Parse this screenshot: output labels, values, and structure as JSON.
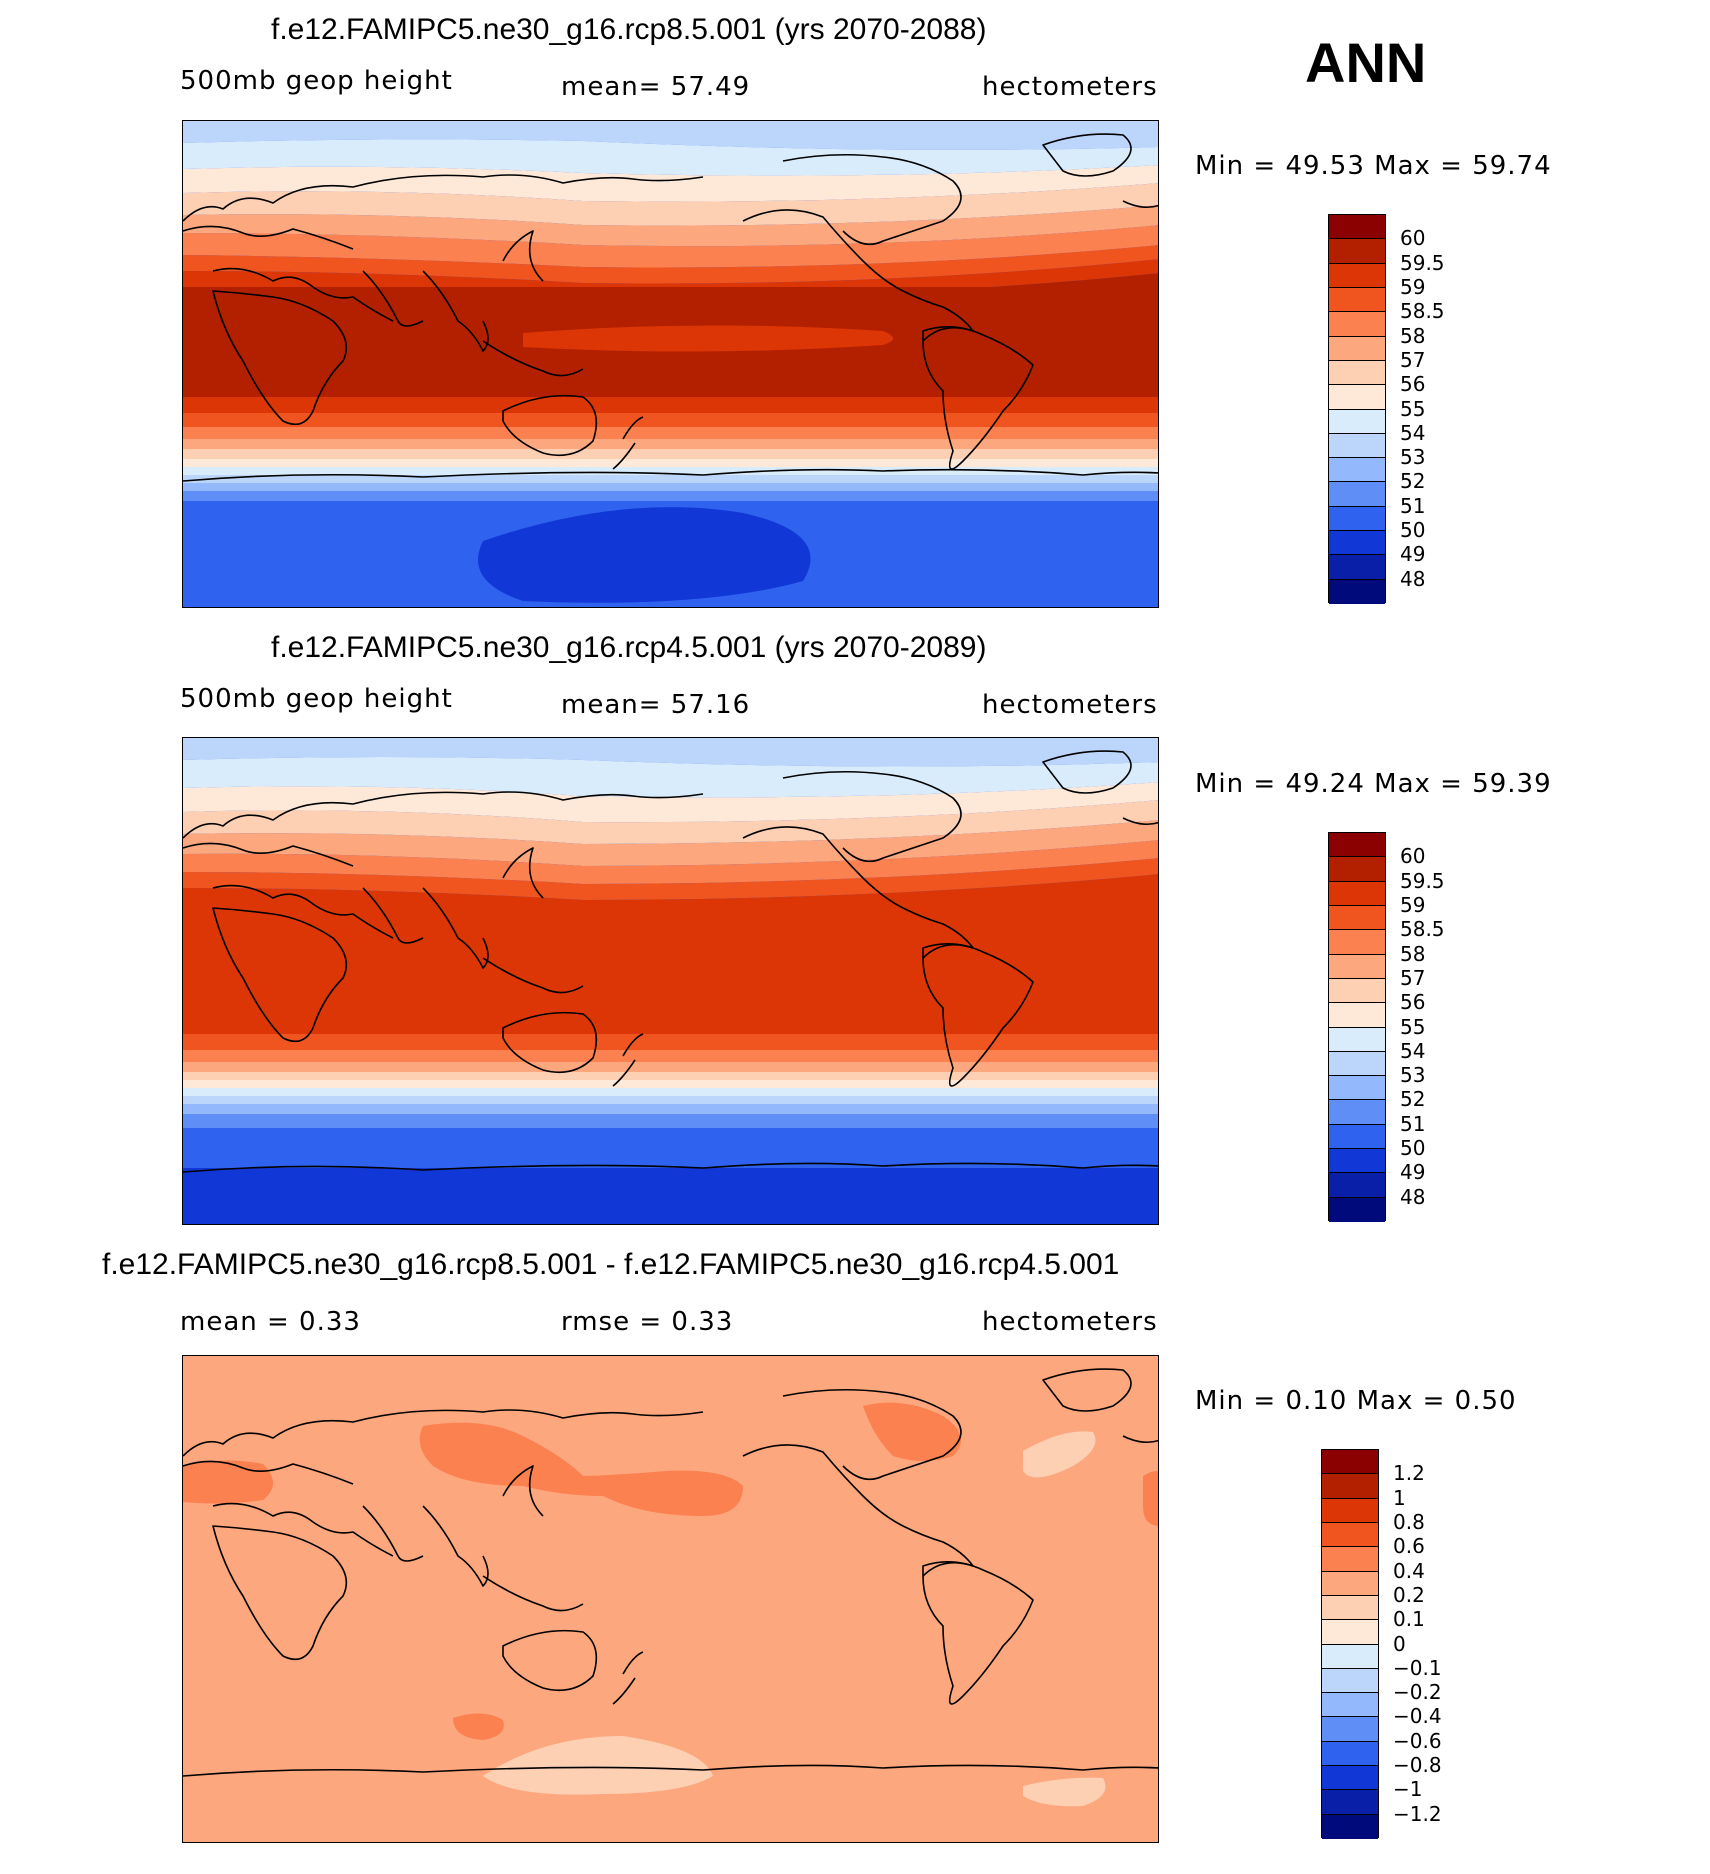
{
  "panels": [
    {
      "title": "f.e12.FAMIPC5.ne30_g16.rcp8.5.001 (yrs 2070-2088)",
      "left_label": "500mb  geop  height",
      "center_label": "mean=   57.49",
      "right_label": "hectometers",
      "minmax": "Min  =    49.53  Max  =    59.74",
      "colorbar_labels": [
        "60",
        "59.5",
        "59",
        "58.5",
        "58",
        "57",
        "56",
        "55",
        "54",
        "53",
        "52",
        "51",
        "50",
        "49",
        "48"
      ],
      "colorbar_colors": [
        "#8b0000",
        "#b22000",
        "#dc3606",
        "#f05520",
        "#fb8150",
        "#fca77d",
        "#fdcfb3",
        "#fee8d8",
        "#d9ecfc",
        "#bcd5fb",
        "#93b8fb",
        "#5f8ef7",
        "#2f62ef",
        "#1137d6",
        "#0a1fa8",
        "#000a7a"
      ],
      "min": 49.53,
      "max": 59.74
    },
    {
      "title": "f.e12.FAMIPC5.ne30_g16.rcp4.5.001 (yrs 2070-2089)",
      "left_label": "500mb  geop  height",
      "center_label": "mean=   57.16",
      "right_label": "hectometers",
      "minmax": "Min  =    49.24  Max  =    59.39",
      "colorbar_labels": [
        "60",
        "59.5",
        "59",
        "58.5",
        "58",
        "57",
        "56",
        "55",
        "54",
        "53",
        "52",
        "51",
        "50",
        "49",
        "48"
      ],
      "colorbar_colors": [
        "#8b0000",
        "#b22000",
        "#dc3606",
        "#f05520",
        "#fb8150",
        "#fca77d",
        "#fdcfb3",
        "#fee8d8",
        "#d9ecfc",
        "#bcd5fb",
        "#93b8fb",
        "#5f8ef7",
        "#2f62ef",
        "#1137d6",
        "#0a1fa8",
        "#000a7a"
      ],
      "min": 49.24,
      "max": 59.39
    },
    {
      "title": "f.e12.FAMIPC5.ne30_g16.rcp8.5.001 - f.e12.FAMIPC5.ne30_g16.rcp4.5.001",
      "left_label": "mean  =     0.33",
      "center_label": "rmse  =     0.33",
      "right_label": "hectometers",
      "minmax": "Min  =     0.10  Max  =     0.50",
      "colorbar_labels": [
        "1.2",
        "1",
        "0.8",
        "0.6",
        "0.4",
        "0.2",
        "0.1",
        "0",
        "−0.1",
        "−0.2",
        "−0.4",
        "−0.6",
        "−0.8",
        "−1",
        "−1.2"
      ],
      "colorbar_colors": [
        "#8b0000",
        "#b22000",
        "#dc3606",
        "#f05520",
        "#fb8150",
        "#fca77d",
        "#fdcfb3",
        "#fee8d8",
        "#d9ecfc",
        "#bcd5fb",
        "#93b8fb",
        "#5f8ef7",
        "#2f62ef",
        "#1137d6",
        "#0a1fa8",
        "#000a7a"
      ],
      "min": 0.1,
      "max": 0.5
    }
  ],
  "season_label": "ANN"
}
